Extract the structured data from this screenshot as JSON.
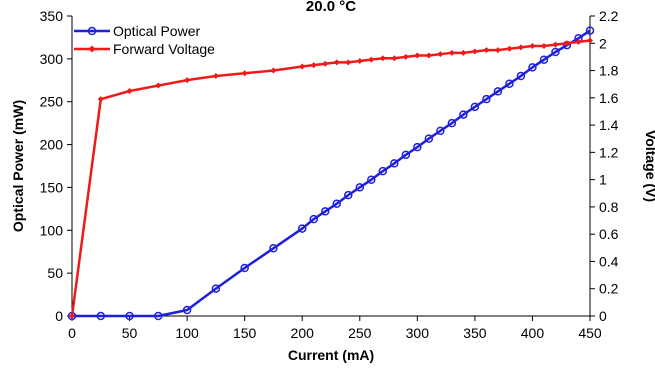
{
  "chart_data": {
    "type": "line",
    "title": "20.0 °C",
    "xlabel": "Current (mA)",
    "ylabel_left": "Optical Power (mW)",
    "ylabel_right": "Voltage (V)",
    "xlim": [
      0,
      450
    ],
    "ylim_left": [
      0,
      350
    ],
    "ylim_right": [
      0,
      2.2
    ],
    "x_ticks": [
      "0",
      "50",
      "100",
      "150",
      "200",
      "250",
      "300",
      "350",
      "400",
      "450"
    ],
    "y_left_ticks": [
      "0",
      "50",
      "100",
      "150",
      "200",
      "250",
      "300",
      "350"
    ],
    "y_right_ticks": [
      "0",
      "0.2",
      "0.4",
      "0.6",
      "0.8",
      "1",
      "1.2",
      "1.4",
      "1.6",
      "1.8",
      "2",
      "2.2"
    ],
    "grid": false,
    "legend_position": "top-left",
    "series": [
      {
        "name": "Optical Power",
        "axis": "left",
        "color": "#1f1fdf",
        "marker": "circle",
        "x": [
          0,
          25,
          50,
          75,
          100,
          125,
          150,
          175,
          200,
          210,
          220,
          230,
          240,
          250,
          260,
          270,
          280,
          290,
          300,
          310,
          320,
          330,
          340,
          350,
          360,
          370,
          380,
          390,
          400,
          410,
          420,
          430,
          440,
          450
        ],
        "y": [
          0,
          0,
          0,
          0,
          7,
          32,
          56,
          79,
          102,
          113,
          122,
          131,
          141,
          150,
          159,
          169,
          178,
          188,
          197,
          207,
          216,
          225,
          235,
          244,
          253,
          262,
          271,
          280,
          290,
          299,
          308,
          316,
          324,
          333
        ]
      },
      {
        "name": "Forward Voltage",
        "axis": "right",
        "color": "#f01a1a",
        "marker": "diamond",
        "x": [
          0,
          25,
          50,
          75,
          100,
          125,
          150,
          175,
          200,
          210,
          220,
          230,
          240,
          250,
          260,
          270,
          280,
          290,
          300,
          310,
          320,
          330,
          340,
          350,
          360,
          370,
          380,
          390,
          400,
          410,
          420,
          430,
          440,
          450
        ],
        "y": [
          0,
          1.59,
          1.65,
          1.69,
          1.73,
          1.76,
          1.78,
          1.8,
          1.83,
          1.84,
          1.85,
          1.86,
          1.86,
          1.87,
          1.88,
          1.89,
          1.89,
          1.9,
          1.91,
          1.91,
          1.92,
          1.93,
          1.93,
          1.94,
          1.95,
          1.95,
          1.96,
          1.97,
          1.98,
          1.98,
          1.99,
          2.0,
          2.01,
          2.02
        ]
      }
    ]
  }
}
